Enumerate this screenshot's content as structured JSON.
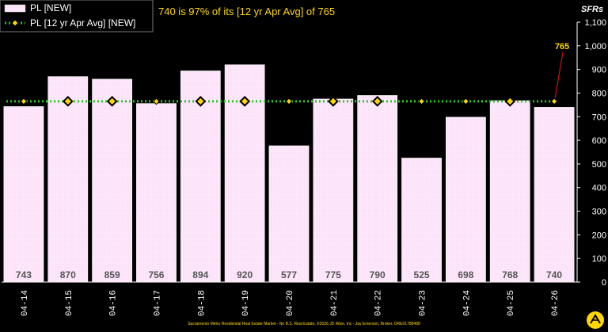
{
  "chart_data": {
    "type": "bar",
    "headline": "740 is 97% of its [12 yr Apr Avg] of 765",
    "unit_label": "SFRs",
    "categories": [
      "04-14",
      "04-15",
      "04-16",
      "04-17",
      "04-18",
      "04-19",
      "04-20",
      "04-21",
      "04-22",
      "04-23",
      "04-24",
      "04-25",
      "04-26"
    ],
    "series": [
      {
        "name": "PL [NEW]",
        "type": "bar",
        "values": [
          743,
          870,
          859,
          756,
          894,
          920,
          577,
          775,
          790,
          525,
          698,
          768,
          740
        ],
        "color": "#fde9fb"
      },
      {
        "name": "PL [12 yr Apr Avg] [NEW]",
        "type": "line",
        "values": [
          765,
          765,
          765,
          765,
          765,
          765,
          765,
          765,
          765,
          765,
          765,
          765,
          765
        ],
        "color": "#22cc22",
        "marker_color": "#ffd700"
      }
    ],
    "ylim": [
      0,
      1100
    ],
    "yticks": [
      "0",
      "100",
      "200",
      "300",
      "400",
      "500",
      "600",
      "700",
      "800",
      "900",
      "1,000",
      "1,100"
    ],
    "highlighted_markers": [
      1,
      2,
      4,
      5,
      7,
      8,
      11
    ],
    "annotation": {
      "text": "765",
      "category_index": 12
    },
    "legend_position": "top-left",
    "grid": false
  },
  "footer": "Sacramento Metro Residential Real Estate Market - No B.S. Real Estate, ©2026 JD Wise, Inc - Jay Emerson, Broker, DRE01788488",
  "logo_icon": "arrows-logo-icon"
}
